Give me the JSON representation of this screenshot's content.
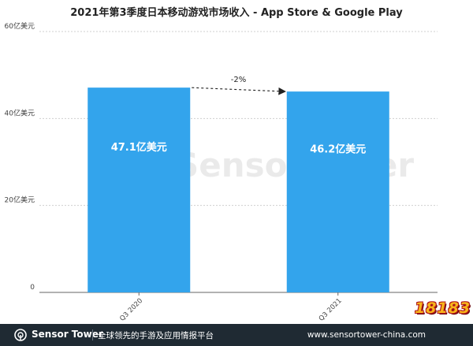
{
  "chart_data": {
    "type": "bar",
    "title": "2021年第3季度日本移动游戏市场收入 - App Store & Google Play",
    "categories": [
      "Q3 2020",
      "Q3 2021"
    ],
    "values": [
      47.1,
      46.2
    ],
    "value_labels": [
      "47.1亿美元",
      "46.2亿美元"
    ],
    "y_ticks": [
      0,
      20,
      40,
      60
    ],
    "y_tick_labels": [
      "0",
      "20亿美元",
      "40亿美元",
      "60亿美元"
    ],
    "ylim": [
      0,
      60
    ],
    "grid": true,
    "bar_color": "#33a4ec",
    "annotation": "-2%",
    "watermark": "SensorTower"
  },
  "footer": {
    "brand": "Sensor Tower",
    "tagline": "全球领先的手游及应用情报平台",
    "website": "www.sensortower-china.com",
    "bg_color": "#1f2a33"
  },
  "badge": {
    "text": "18183",
    "icon": "game-site-badge-icon"
  }
}
